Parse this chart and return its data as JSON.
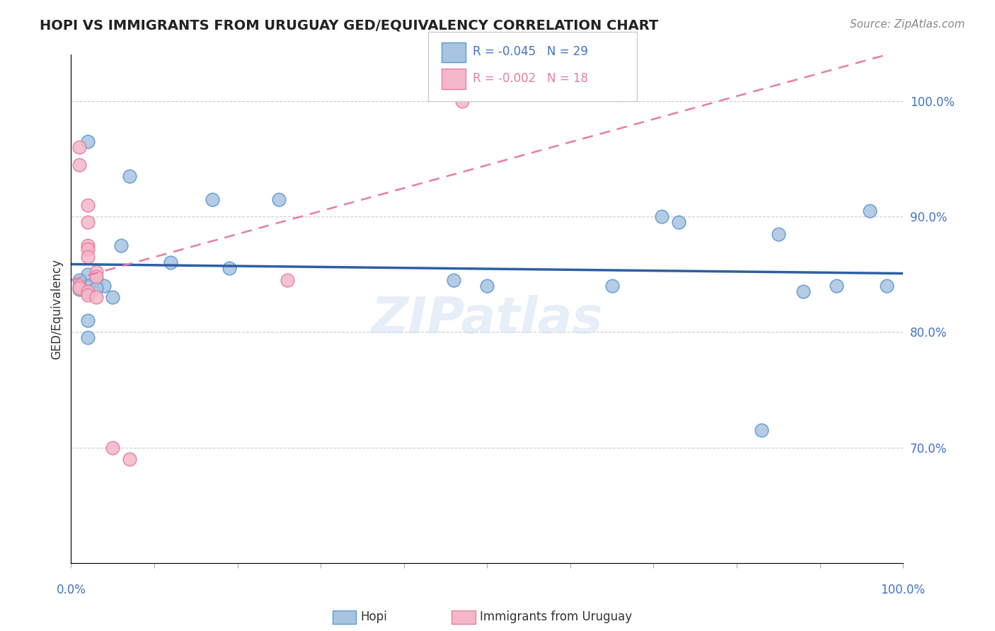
{
  "title": "HOPI VS IMMIGRANTS FROM URUGUAY GED/EQUIVALENCY CORRELATION CHART",
  "source": "Source: ZipAtlas.com",
  "ylabel": "GED/Equivalency",
  "ylabel_right_values": [
    1.0,
    0.9,
    0.8,
    0.7
  ],
  "xmin": 0.0,
  "xmax": 1.0,
  "ymin": 0.6,
  "ymax": 1.04,
  "hopi_color": "#a8c4e0",
  "hopi_edge_color": "#5b9bd5",
  "uruguay_color": "#f4b8c8",
  "uruguay_edge_color": "#e87da0",
  "trendline_hopi_color": "#2e5fa3",
  "trendline_uruguay_color": "#e87da0",
  "legend_R_hopi": "R = -0.045",
  "legend_N_hopi": "N = 29",
  "legend_R_uruguay": "R = -0.002",
  "legend_N_uruguay": "N = 18",
  "watermark": "ZIPatlas",
  "grid_color": "#cccccc",
  "hopi_x": [
    0.02,
    0.07,
    0.17,
    0.25,
    0.06,
    0.12,
    0.19,
    0.02,
    0.03,
    0.02,
    0.04,
    0.02,
    0.01,
    0.01,
    0.03,
    0.05,
    0.02,
    0.02,
    0.46,
    0.65,
    0.71,
    0.73,
    0.85,
    0.88,
    0.92,
    0.96,
    0.98,
    0.83,
    0.5
  ],
  "hopi_y": [
    0.965,
    0.935,
    0.915,
    0.915,
    0.875,
    0.86,
    0.855,
    0.85,
    0.845,
    0.84,
    0.84,
    0.835,
    0.845,
    0.837,
    0.838,
    0.83,
    0.81,
    0.795,
    0.845,
    0.84,
    0.9,
    0.895,
    0.885,
    0.835,
    0.84,
    0.905,
    0.84,
    0.715,
    0.84
  ],
  "uruguay_x": [
    0.47,
    0.01,
    0.01,
    0.02,
    0.02,
    0.02,
    0.02,
    0.02,
    0.03,
    0.03,
    0.01,
    0.01,
    0.02,
    0.02,
    0.03,
    0.26,
    0.05,
    0.07
  ],
  "uruguay_y": [
    1.0,
    0.96,
    0.945,
    0.91,
    0.895,
    0.875,
    0.872,
    0.865,
    0.852,
    0.848,
    0.84,
    0.838,
    0.835,
    0.832,
    0.83,
    0.845,
    0.7,
    0.69
  ]
}
